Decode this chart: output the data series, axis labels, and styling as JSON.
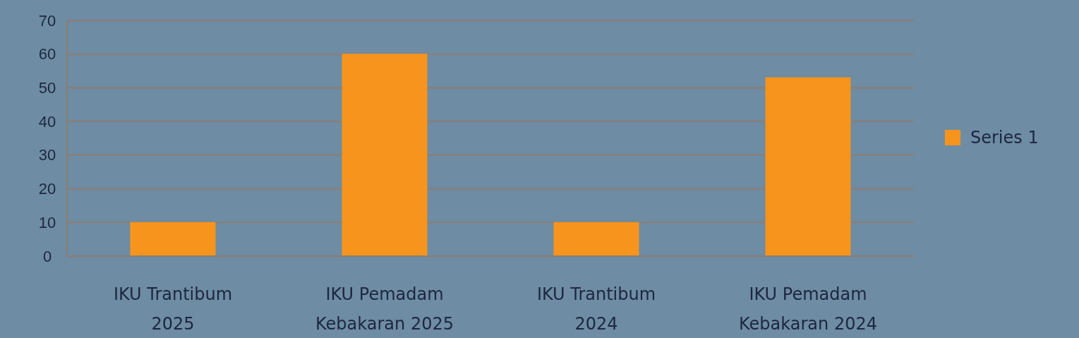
{
  "chart_data": {
    "type": "bar",
    "categories": [
      "IKU Trantibum 2025",
      "IKU Pemadam Kebakaran 2025",
      "IKU Trantibum 2024",
      "IKU Pemadam Kebakaran 2024"
    ],
    "series": [
      {
        "name": "Series 1",
        "color": "#f7941d",
        "values": [
          10,
          60,
          10,
          53
        ]
      }
    ],
    "ylim": [
      0,
      70
    ],
    "yticks": [
      0,
      10,
      20,
      30,
      40,
      50,
      60,
      70
    ],
    "grid": "y",
    "legend": "right"
  }
}
